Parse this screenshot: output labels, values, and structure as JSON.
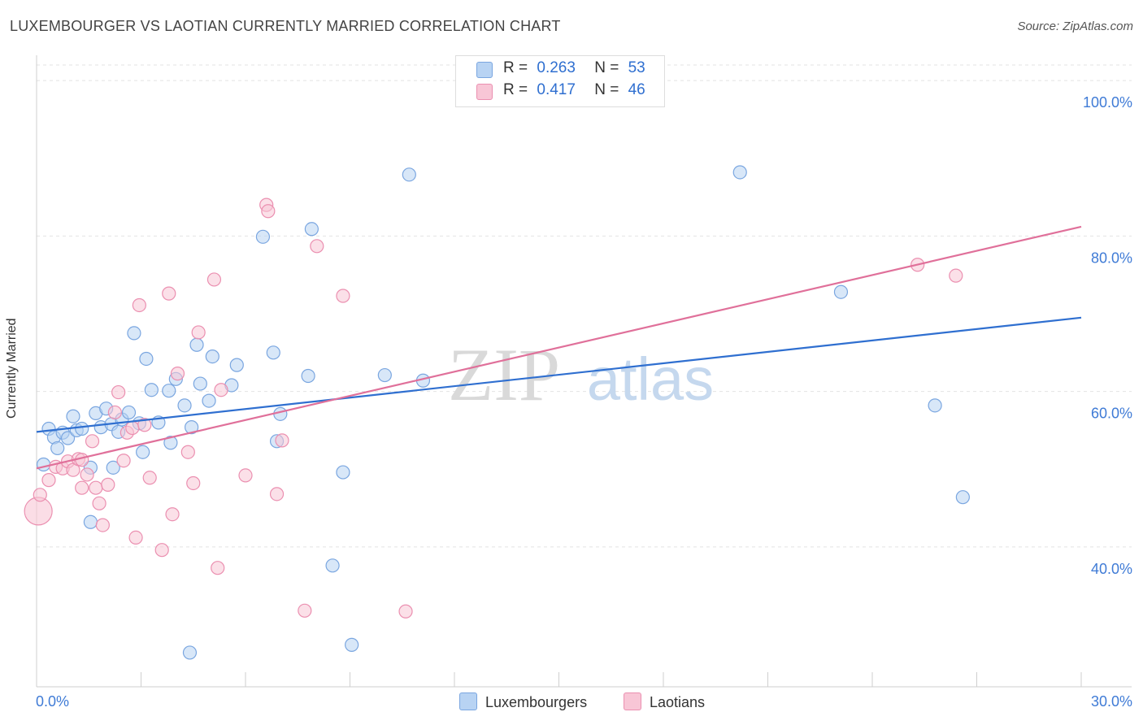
{
  "title": "LUXEMBOURGER VS LAOTIAN CURRENTLY MARRIED CORRELATION CHART",
  "source": "Source: ZipAtlas.com",
  "watermark": {
    "left": "ZIP",
    "right": "atlas"
  },
  "legend": {
    "rows": [
      {
        "r_label": "R =",
        "r_value": "0.263",
        "n_label": "N =",
        "n_value": "53"
      },
      {
        "r_label": "R =",
        "r_value": "0.417",
        "n_label": "N =",
        "n_value": "46"
      }
    ]
  },
  "bottom_legend": [
    "Luxembourgers",
    "Laotians"
  ],
  "colors": {
    "blue_fill": "#b8d3f3",
    "blue_stroke": "#7aa6e0",
    "blue_line": "#2f6fd0",
    "pink_fill": "#f8c6d6",
    "pink_stroke": "#eb8fb0",
    "pink_line": "#e0709a",
    "tick_label": "#3f7bd6"
  },
  "chart_data": {
    "type": "scatter",
    "title": "LUXEMBOURGER VS LAOTIAN CURRENTLY MARRIED CORRELATION CHART",
    "xlabel": "",
    "ylabel": "Currently Married",
    "xlim": [
      0,
      30
    ],
    "ylim": [
      22,
      102
    ],
    "x_tick_labels": [
      "0.0%",
      "30.0%"
    ],
    "y_ticks": [
      40,
      60,
      80,
      100
    ],
    "y_tick_labels": [
      "40.0%",
      "60.0%",
      "80.0%",
      "100.0%"
    ],
    "grid": true,
    "series": [
      {
        "name": "Luxembourgers",
        "r": 0.263,
        "n": 53,
        "trend": {
          "x": [
            0,
            30
          ],
          "y": [
            54.8,
            69.5
          ]
        },
        "points": [
          [
            0.2,
            50.6
          ],
          [
            0.35,
            55.2
          ],
          [
            0.5,
            54.1
          ],
          [
            0.6,
            52.7
          ],
          [
            0.75,
            54.7
          ],
          [
            0.9,
            54.0
          ],
          [
            1.05,
            56.8
          ],
          [
            1.15,
            55.0
          ],
          [
            1.3,
            55.2
          ],
          [
            1.55,
            43.2
          ],
          [
            1.55,
            50.2
          ],
          [
            1.7,
            57.2
          ],
          [
            1.85,
            55.4
          ],
          [
            2.0,
            57.8
          ],
          [
            2.15,
            55.8
          ],
          [
            2.2,
            50.2
          ],
          [
            2.35,
            54.8
          ],
          [
            2.45,
            56.4
          ],
          [
            2.65,
            57.3
          ],
          [
            2.8,
            67.5
          ],
          [
            2.95,
            55.9
          ],
          [
            3.05,
            52.2
          ],
          [
            3.15,
            64.2
          ],
          [
            3.3,
            60.2
          ],
          [
            3.5,
            56.0
          ],
          [
            3.8,
            60.1
          ],
          [
            3.85,
            53.4
          ],
          [
            4.0,
            61.6
          ],
          [
            4.25,
            58.2
          ],
          [
            4.4,
            26.4
          ],
          [
            4.45,
            55.4
          ],
          [
            4.6,
            66.0
          ],
          [
            4.7,
            61.0
          ],
          [
            4.95,
            58.8
          ],
          [
            5.05,
            64.5
          ],
          [
            5.6,
            60.8
          ],
          [
            5.75,
            63.4
          ],
          [
            6.5,
            79.9
          ],
          [
            6.8,
            65.0
          ],
          [
            6.9,
            53.6
          ],
          [
            7.0,
            57.1
          ],
          [
            7.8,
            62.0
          ],
          [
            7.9,
            80.9
          ],
          [
            8.5,
            37.6
          ],
          [
            8.8,
            49.6
          ],
          [
            9.05,
            27.4
          ],
          [
            10.0,
            62.1
          ],
          [
            10.7,
            87.9
          ],
          [
            11.1,
            61.4
          ],
          [
            20.2,
            88.2
          ],
          [
            23.1,
            72.8
          ],
          [
            25.8,
            58.2
          ],
          [
            26.6,
            46.4
          ]
        ]
      },
      {
        "name": "Laotians",
        "r": 0.417,
        "n": 46,
        "trend": {
          "x": [
            0,
            30
          ],
          "y": [
            50.1,
            81.2
          ]
        },
        "points": [
          [
            0.05,
            44.6
          ],
          [
            0.1,
            46.7
          ],
          [
            0.35,
            48.6
          ],
          [
            0.55,
            50.3
          ],
          [
            0.75,
            50.1
          ],
          [
            0.9,
            51.0
          ],
          [
            1.05,
            49.9
          ],
          [
            1.2,
            51.3
          ],
          [
            1.3,
            51.2
          ],
          [
            1.3,
            47.6
          ],
          [
            1.45,
            49.3
          ],
          [
            1.6,
            53.6
          ],
          [
            1.7,
            47.6
          ],
          [
            1.8,
            45.6
          ],
          [
            1.9,
            42.8
          ],
          [
            2.05,
            48.0
          ],
          [
            2.25,
            57.3
          ],
          [
            2.35,
            59.9
          ],
          [
            2.5,
            51.1
          ],
          [
            2.6,
            54.7
          ],
          [
            2.75,
            55.3
          ],
          [
            2.85,
            41.2
          ],
          [
            2.95,
            71.1
          ],
          [
            3.1,
            55.7
          ],
          [
            3.25,
            48.9
          ],
          [
            3.6,
            39.6
          ],
          [
            3.8,
            72.6
          ],
          [
            3.9,
            44.2
          ],
          [
            4.05,
            62.3
          ],
          [
            4.35,
            52.2
          ],
          [
            4.5,
            48.2
          ],
          [
            4.65,
            67.6
          ],
          [
            5.1,
            74.4
          ],
          [
            5.2,
            37.3
          ],
          [
            5.3,
            60.2
          ],
          [
            6.0,
            49.2
          ],
          [
            6.6,
            84.0
          ],
          [
            6.65,
            83.2
          ],
          [
            6.9,
            46.8
          ],
          [
            7.05,
            53.7
          ],
          [
            7.7,
            31.8
          ],
          [
            8.05,
            78.7
          ],
          [
            8.8,
            72.3
          ],
          [
            10.6,
            31.7
          ],
          [
            25.3,
            76.3
          ],
          [
            26.4,
            74.9
          ]
        ]
      }
    ]
  }
}
